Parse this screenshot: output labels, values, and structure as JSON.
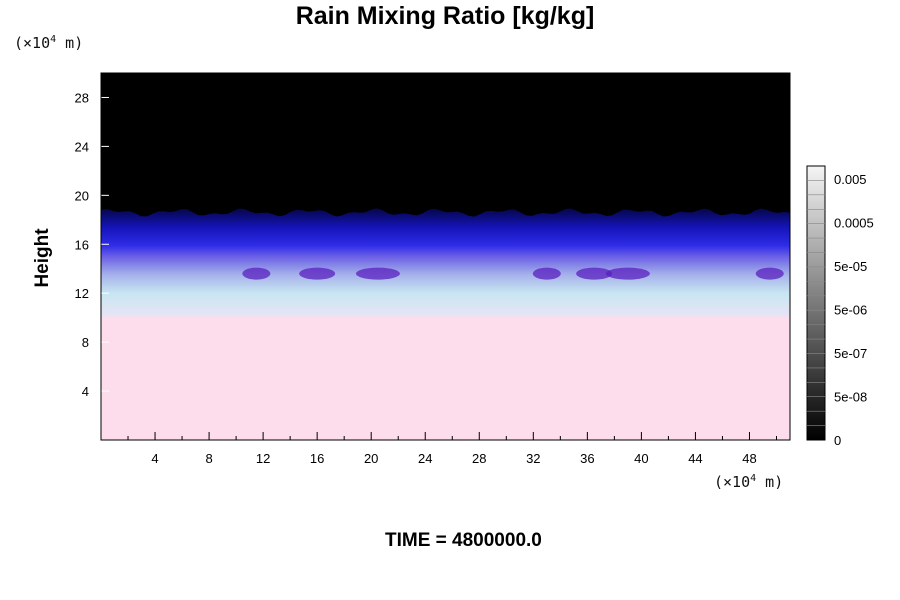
{
  "chart_data": {
    "type": "heatmap",
    "title": "Rain Mixing Ratio [kg/kg]",
    "ylabel": "Height",
    "xlabel": "",
    "x_unit_label": {
      "base": "(×10",
      "exponent": "4",
      "tail": " m)"
    },
    "y_unit_label": {
      "base": "(×10",
      "exponent": "4",
      "tail": " m)"
    },
    "x_ticks": [
      "4",
      "8",
      "12",
      "16",
      "20",
      "24",
      "28",
      "32",
      "36",
      "40",
      "44",
      "48"
    ],
    "y_ticks": [
      "4",
      "8",
      "12",
      "16",
      "20",
      "24",
      "28"
    ],
    "xlim": [
      0,
      51
    ],
    "ylim": [
      0,
      30
    ],
    "colorbar_labels": [
      "0.005",
      "0.0005",
      "5e-05",
      "5e-06",
      "5e-07",
      "5e-08",
      "0"
    ],
    "colorbar_scale": "log",
    "layers": [
      {
        "name": "",
        "from": 0,
        "to": 10,
        "color": "#fddcec"
      },
      {
        "name": "",
        "from": 10,
        "to": 12.5,
        "color": "#c8e6f2"
      },
      {
        "name": "",
        "from": 12.5,
        "to": 14.5,
        "color": "#9aa4e8"
      },
      {
        "name": "",
        "from": 14.5,
        "to": 17,
        "color": "#2828e0"
      },
      {
        "name": "",
        "from": 17,
        "to": 19,
        "color": "#0a0a80"
      },
      {
        "name": "",
        "from": 19,
        "to": 30,
        "color": "#000000"
      }
    ],
    "footer": "TIME = 4800000.0"
  }
}
